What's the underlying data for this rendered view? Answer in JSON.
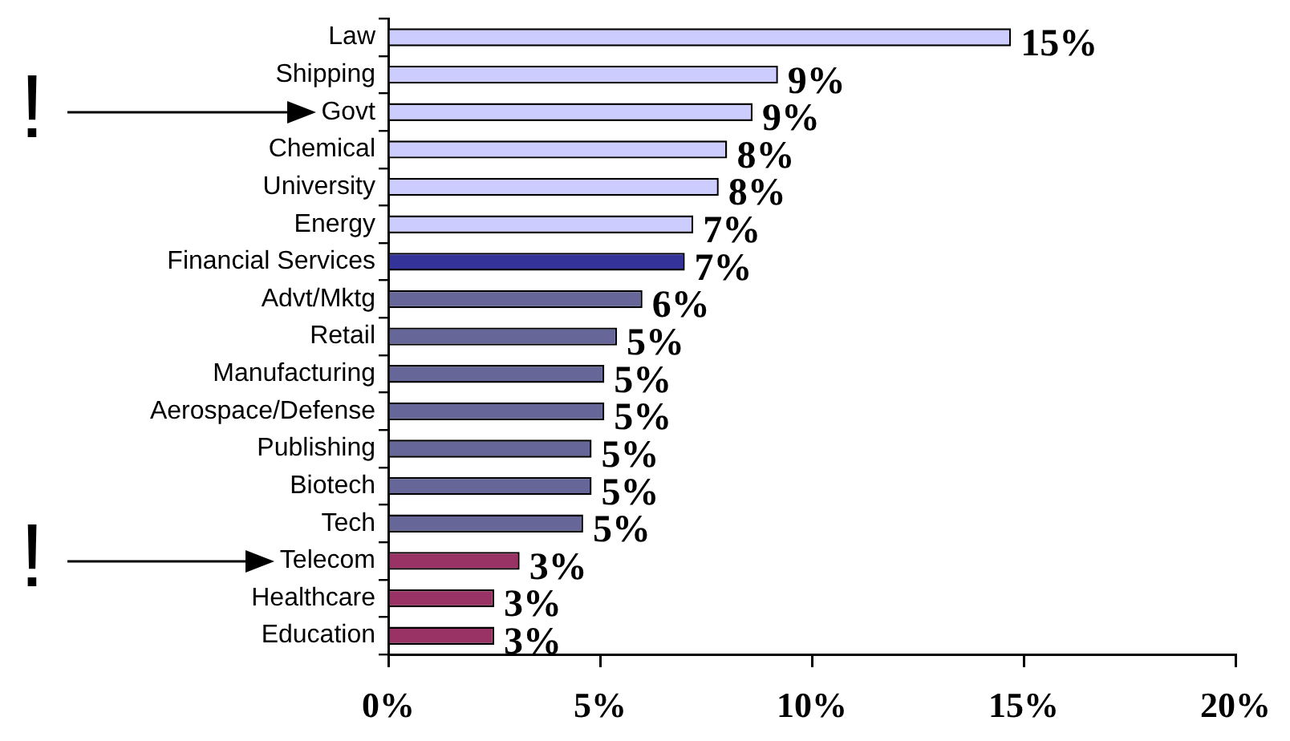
{
  "chart_data": {
    "type": "bar",
    "orientation": "horizontal",
    "categories": [
      "Law",
      "Shipping",
      "Govt",
      "Chemical",
      "University",
      "Energy",
      "Financial Services",
      "Advt/Mktg",
      "Retail",
      "Manufacturing",
      "Aerospace/Defense",
      "Publishing",
      "Biotech",
      "Tech",
      "Telecom",
      "Healthcare",
      "Education"
    ],
    "values": [
      14.7,
      9.2,
      8.6,
      8.0,
      7.8,
      7.2,
      7.0,
      6.0,
      5.4,
      5.1,
      5.1,
      4.8,
      4.8,
      4.6,
      3.1,
      2.5,
      2.5
    ],
    "colors": [
      "#ccccff",
      "#ccccff",
      "#ccccff",
      "#ccccff",
      "#ccccff",
      "#ccccff",
      "#333399",
      "#666699",
      "#666699",
      "#666699",
      "#666699",
      "#666699",
      "#666699",
      "#666699",
      "#993366",
      "#993366",
      "#993366"
    ],
    "value_labels": [
      "15%",
      "9%",
      "9%",
      "8%",
      "8%",
      "7%",
      "7%",
      "6%",
      "5%",
      "5%",
      "5%",
      "5%",
      "5%",
      "5%",
      "3%",
      "3%",
      "3%"
    ],
    "xlim": [
      0,
      20
    ],
    "xticks": [
      {
        "value": 0,
        "label": "0%"
      },
      {
        "value": 5,
        "label": "5%"
      },
      {
        "value": 10,
        "label": "10%"
      },
      {
        "value": 15,
        "label": "15%"
      },
      {
        "value": 20,
        "label": "20%"
      }
    ],
    "grid": false,
    "legend": false,
    "annotations": [
      "!",
      "!"
    ]
  }
}
